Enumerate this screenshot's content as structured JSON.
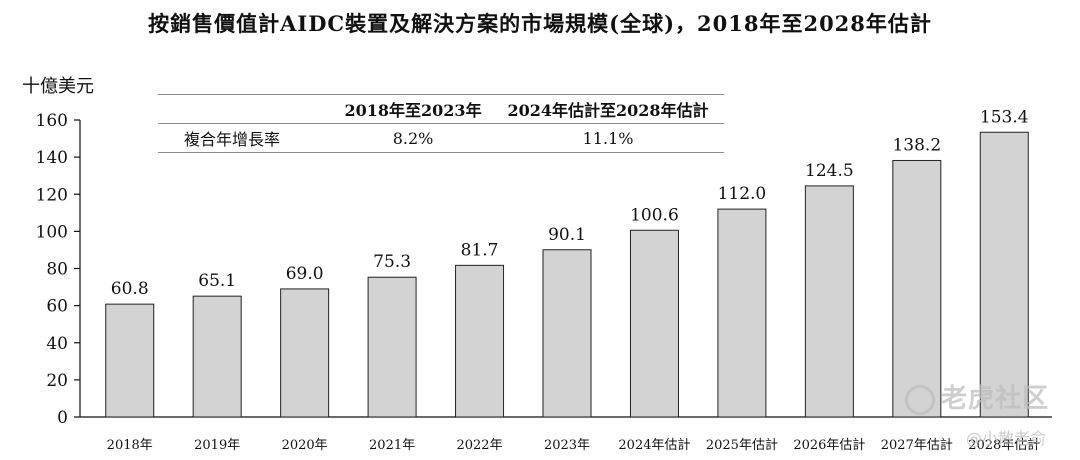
{
  "chart_data": {
    "type": "bar",
    "title": "按銷售價值計AIDC裝置及解決方案的市場規模(全球)，2018年至2028年估計",
    "ylabel": "十億美元",
    "xlabel": "",
    "categories": [
      "2018年",
      "2019年",
      "2020年",
      "2021年",
      "2022年",
      "2023年",
      "2024年估計",
      "2025年估計",
      "2026年估計",
      "2027年估計",
      "2028年估計"
    ],
    "values": [
      60.8,
      65.1,
      69.0,
      75.3,
      81.7,
      90.1,
      100.6,
      112.0,
      124.5,
      138.2,
      153.4
    ],
    "value_labels": [
      "60.8",
      "65.1",
      "69.0",
      "75.3",
      "81.7",
      "90.1",
      "100.6",
      "112.0",
      "124.5",
      "138.2",
      "153.4"
    ],
    "ylim": [
      0,
      160
    ],
    "yticks": [
      "0",
      "20",
      "40",
      "60",
      "80",
      "100",
      "120",
      "140",
      "160"
    ],
    "grid": false,
    "bar_color": "#d3d3d3",
    "bar_edge_color": "#222222"
  },
  "cagr_table": {
    "headers": [
      "",
      "2018年至2023年",
      "2024年估計至2028年估計"
    ],
    "row": {
      "label": "複合年增長率",
      "values": [
        "8.2%",
        "11.1%"
      ]
    }
  },
  "watermarks": {
    "platform": "老虎社区",
    "author": "@小散老俞"
  }
}
